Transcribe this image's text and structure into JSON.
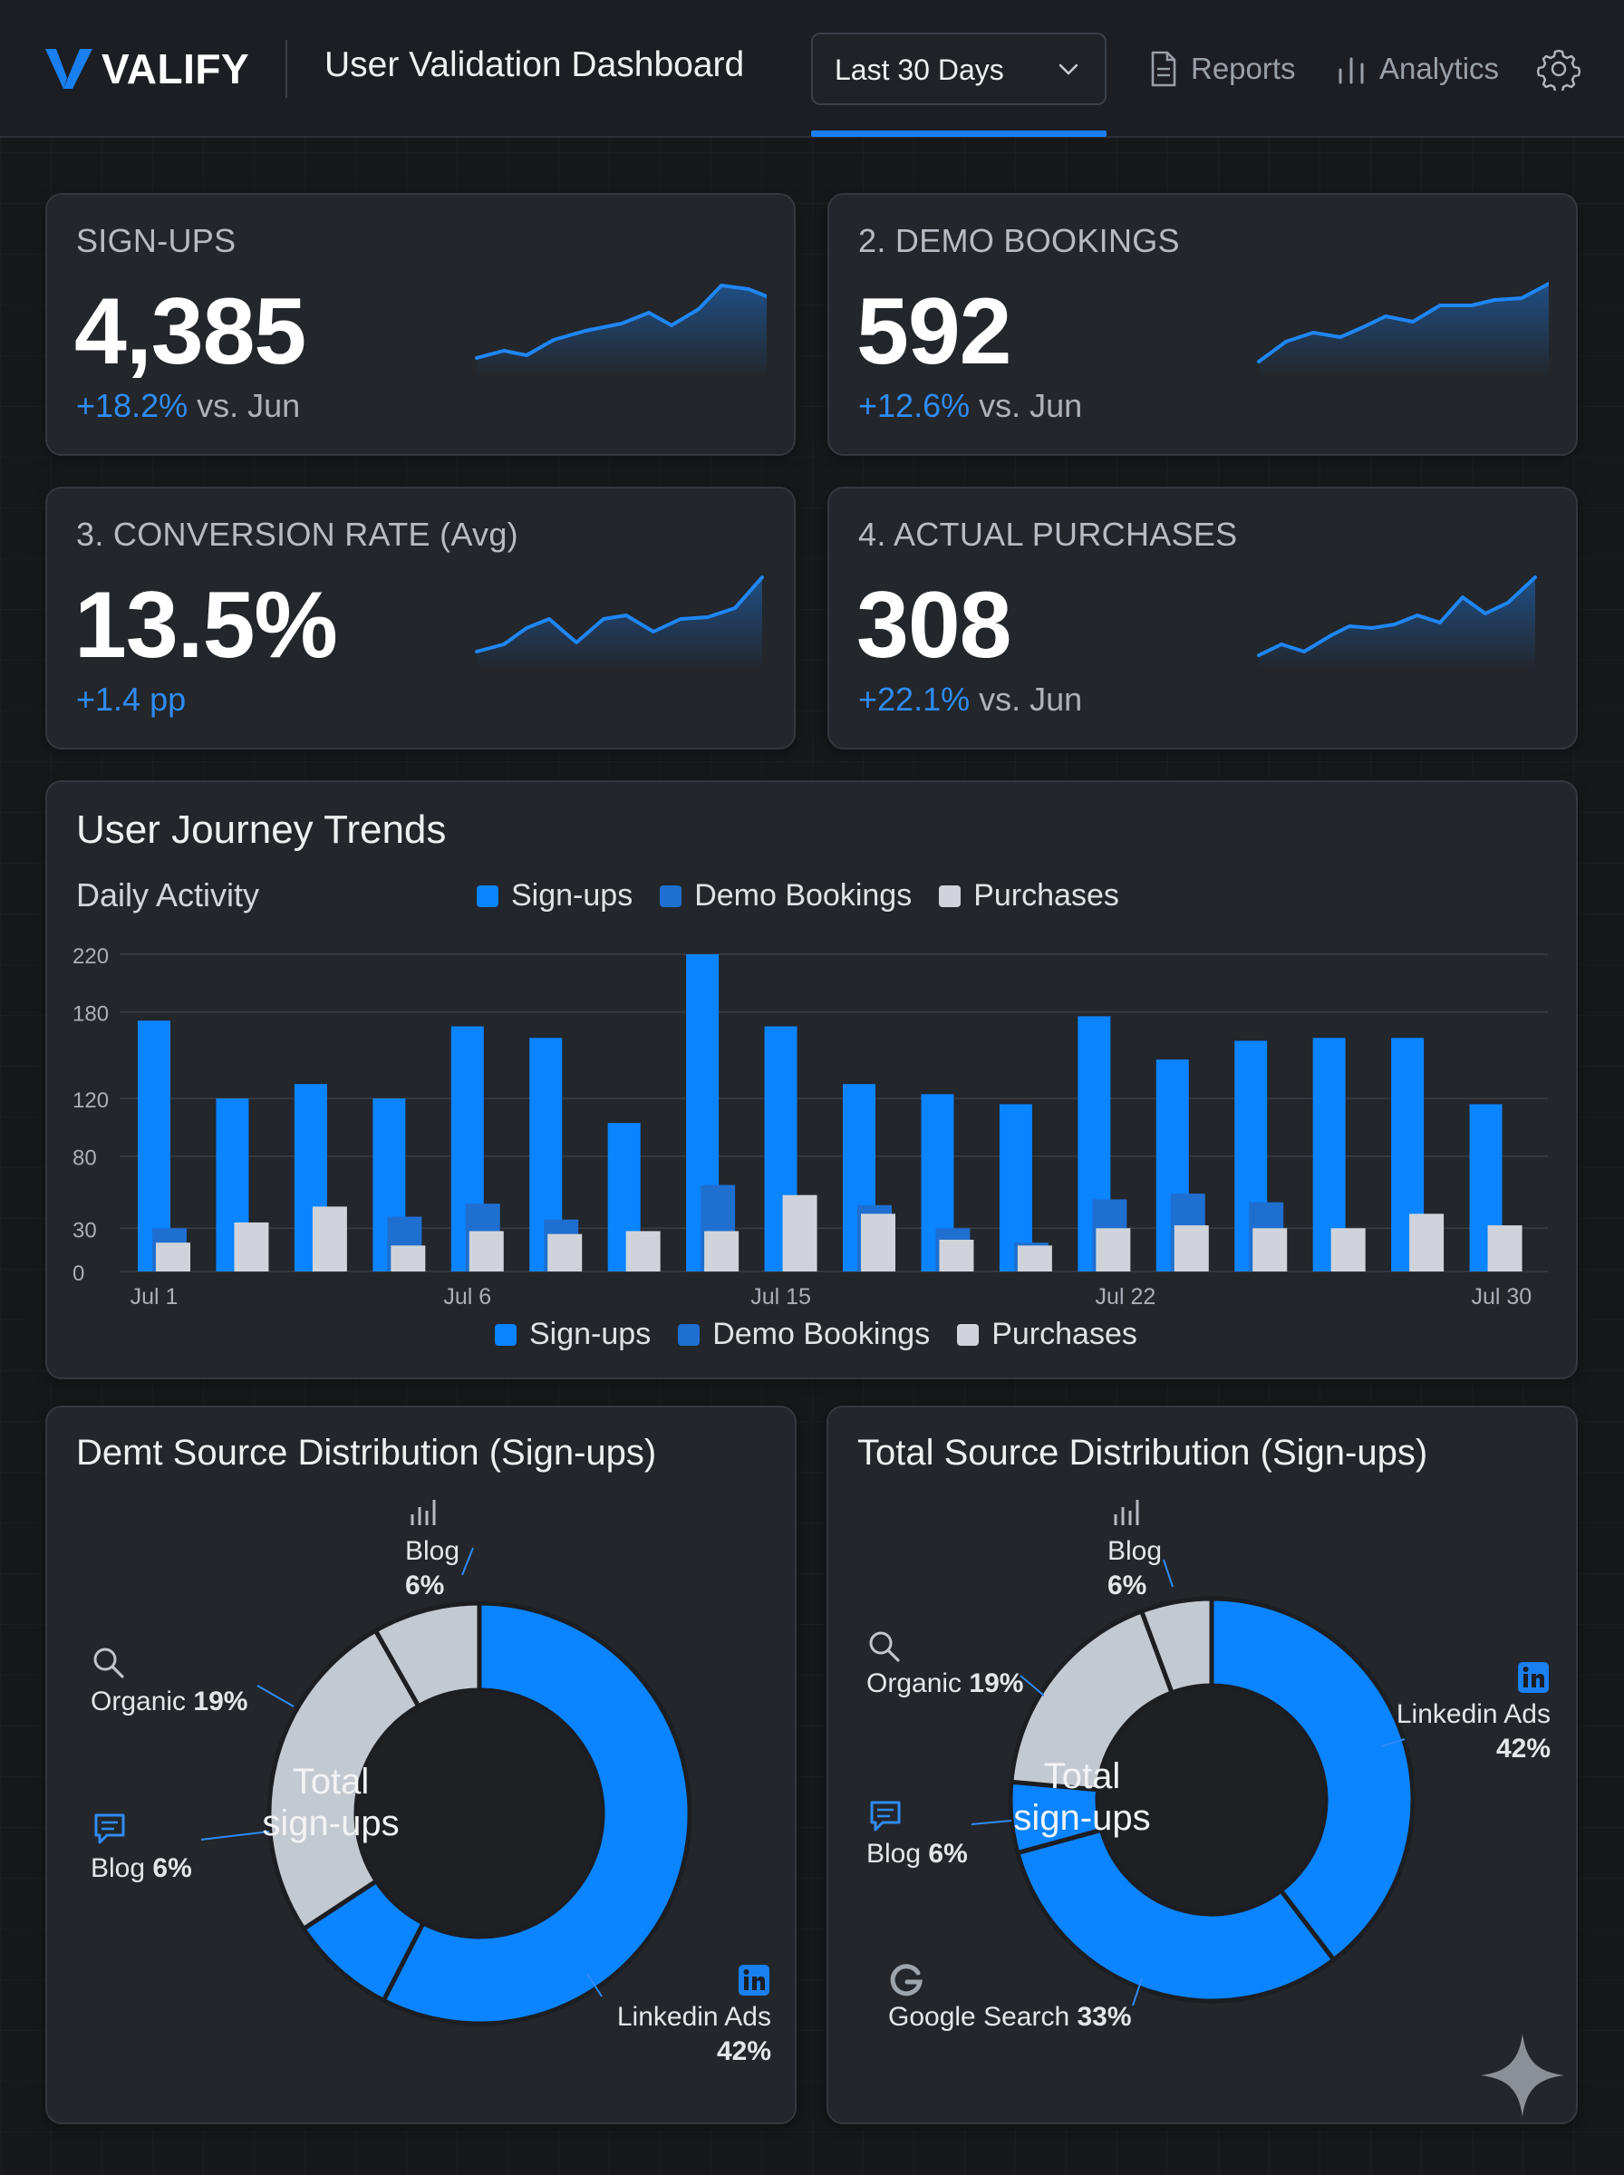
{
  "header": {
    "brand": "VALIFY",
    "title": "User Validation Dashboard",
    "range_label": "Last 30 Days",
    "nav": [
      {
        "label": "Reports",
        "icon": "document-icon"
      },
      {
        "label": "Analytics",
        "icon": "bar-chart-icon"
      }
    ],
    "settings_icon": "gear-icon"
  },
  "kpis": [
    {
      "label": "SIGN-UPS",
      "value": "4,385",
      "delta": "+18.2%",
      "delta_suffix": " vs. Jun"
    },
    {
      "label": "2. DEMO BOOKINGS",
      "value": "592",
      "delta": "+12.6%",
      "delta_suffix": " vs. Jun"
    },
    {
      "label": "3. CONVERSION RATE (Avg)",
      "value": "13.5%",
      "delta": "+1.4 pp",
      "delta_suffix": ""
    },
    {
      "label": "4. ACTUAL PURCHASES",
      "value": "308",
      "delta": "+22.1%",
      "delta_suffix": " vs. Jun"
    }
  ],
  "trends": {
    "title": "User Journey Trends",
    "subtitle": "Daily Activity",
    "legend": [
      "Sign-ups",
      "Demo Bookings",
      "Purchases"
    ]
  },
  "donut_left": {
    "title": "Demt Source Distribution (Sign-ups)",
    "center_line1": "Total",
    "center_line2": "sign-ups",
    "labels": {
      "blog_top": {
        "name": "Blog",
        "pct": "6%"
      },
      "organic": {
        "name": "Organic",
        "pct": "19%"
      },
      "blog_left": {
        "name": "Blog",
        "pct": "6%"
      },
      "linkedin": {
        "name": "Linkedin Ads",
        "pct": "42%"
      }
    }
  },
  "donut_right": {
    "title": "Total Source Distribution (Sign-ups)",
    "center_line1": "Total",
    "center_line2": "sign-ups",
    "labels": {
      "blog_top": {
        "name": "Blog",
        "pct": "6%"
      },
      "organic": {
        "name": "Organic",
        "pct": "19%"
      },
      "blog_left": {
        "name": "Blog",
        "pct": "6%"
      },
      "linkedin": {
        "name": "Linkedin Ads",
        "pct": "42%"
      },
      "google": {
        "name": "Google Search",
        "pct": "33%"
      }
    }
  },
  "colors": {
    "accent": "#1a7ff0",
    "signups": "#0a84ff",
    "demo": "#1e6fd0",
    "purchases": "#d0d4da",
    "slice_gray": "#c3c9d1"
  },
  "chart_data": [
    {
      "type": "bar",
      "title": "User Journey Trends",
      "subtitle": "Daily Activity",
      "x_tick_labels": [
        "Jul 1",
        "Jul 6",
        "Jul 15",
        "Jul 22",
        "Jul 30"
      ],
      "y_tick_labels": [
        "0",
        "30",
        "80",
        "120",
        "180",
        "220"
      ],
      "ylim": [
        0,
        220
      ],
      "grid": true,
      "legend_placement": "top and bottom",
      "series": [
        {
          "name": "Sign-ups",
          "values": [
            174,
            120,
            130,
            120,
            170,
            162,
            103,
            220,
            170,
            130,
            123,
            116,
            177,
            147,
            160,
            162,
            162,
            116
          ]
        },
        {
          "name": "Demo Bookings",
          "values": [
            30,
            0,
            0,
            38,
            47,
            36,
            0,
            60,
            0,
            46,
            30,
            20,
            50,
            54,
            48,
            0,
            0,
            0
          ]
        },
        {
          "name": "Purchases",
          "values": [
            20,
            34,
            45,
            18,
            28,
            26,
            28,
            28,
            53,
            40,
            22,
            18,
            30,
            32,
            30,
            30,
            40,
            32
          ]
        }
      ]
    },
    {
      "type": "pie",
      "title": "Demt Source Distribution (Sign-ups)",
      "slices": [
        {
          "name": "Linkedin Ads",
          "value": 42
        },
        {
          "name": "Blog",
          "value": 6
        },
        {
          "name": "Organic",
          "value": 19
        },
        {
          "name": "Blog",
          "value": 6
        }
      ]
    },
    {
      "type": "pie",
      "title": "Total Source Distribution (Sign-ups)",
      "slices": [
        {
          "name": "Linkedin Ads",
          "value": 42
        },
        {
          "name": "Google Search",
          "value": 33
        },
        {
          "name": "Blog",
          "value": 6
        },
        {
          "name": "Organic",
          "value": 19
        },
        {
          "name": "Blog",
          "value": 6
        }
      ]
    }
  ]
}
